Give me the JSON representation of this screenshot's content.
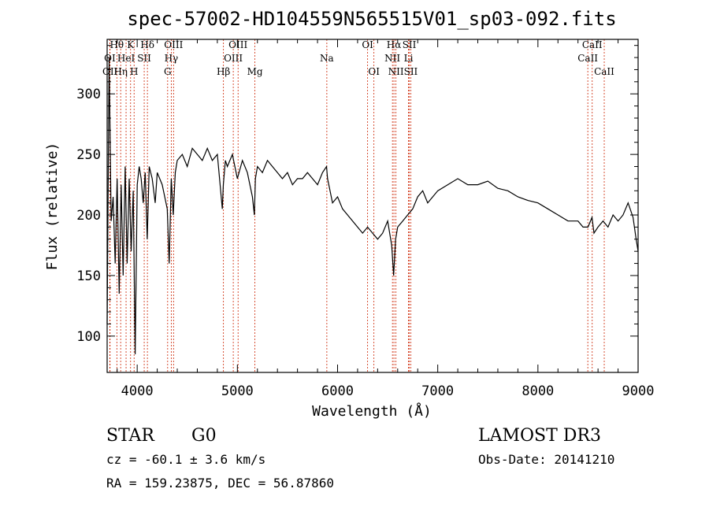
{
  "chart_data": {
    "type": "line",
    "title": "spec-57002-HD104559N565515V01_sp03-092.fits",
    "xlabel": "Wavelength (Å)",
    "ylabel": "Flux (relative)",
    "xlim": [
      3700,
      9000
    ],
    "ylim": [
      70,
      345
    ],
    "x_ticks": [
      "4000",
      "5000",
      "6000",
      "7000",
      "8000",
      "9000"
    ],
    "x_tick_values": [
      4000,
      5000,
      6000,
      7000,
      8000,
      9000
    ],
    "y_ticks": [
      "100",
      "150",
      "200",
      "250",
      "300"
    ],
    "y_tick_values": [
      100,
      150,
      200,
      250,
      300
    ],
    "series": [
      {
        "x": [
          3700,
          3720,
          3740,
          3760,
          3780,
          3800,
          3820,
          3840,
          3860,
          3880,
          3900,
          3920,
          3940,
          3960,
          3980,
          4000,
          4020,
          4040,
          4060,
          4080,
          4100,
          4120,
          4150,
          4180,
          4200,
          4250,
          4300,
          4320,
          4340,
          4360,
          4380,
          4400,
          4450,
          4500,
          4550,
          4600,
          4650,
          4700,
          4750,
          4800,
          4850,
          4860,
          4880,
          4900,
          4950,
          5000,
          5050,
          5100,
          5150,
          5170,
          5180,
          5200,
          5250,
          5300,
          5350,
          5400,
          5450,
          5500,
          5550,
          5600,
          5650,
          5700,
          5750,
          5800,
          5850,
          5890,
          5900,
          5950,
          6000,
          6050,
          6100,
          6150,
          6200,
          6250,
          6300,
          6350,
          6400,
          6450,
          6500,
          6540,
          6560,
          6580,
          6600,
          6650,
          6700,
          6750,
          6800,
          6850,
          6900,
          6950,
          7000,
          7100,
          7200,
          7300,
          7400,
          7500,
          7600,
          7700,
          7800,
          7900,
          8000,
          8100,
          8200,
          8300,
          8400,
          8450,
          8500,
          8540,
          8560,
          8600,
          8650,
          8700,
          8750,
          8800,
          8850,
          8900,
          8950,
          8980,
          9000
        ],
        "y": [
          110,
          330,
          195,
          215,
          160,
          230,
          135,
          225,
          150,
          240,
          160,
          230,
          170,
          220,
          85,
          225,
          240,
          230,
          210,
          235,
          180,
          240,
          230,
          210,
          235,
          225,
          205,
          160,
          230,
          200,
          235,
          245,
          250,
          240,
          255,
          250,
          245,
          255,
          245,
          250,
          205,
          225,
          245,
          240,
          250,
          230,
          245,
          235,
          215,
          200,
          230,
          240,
          235,
          245,
          240,
          235,
          230,
          235,
          225,
          230,
          230,
          235,
          230,
          225,
          235,
          240,
          230,
          210,
          215,
          205,
          200,
          195,
          190,
          185,
          190,
          185,
          180,
          185,
          195,
          175,
          150,
          180,
          190,
          195,
          200,
          205,
          215,
          220,
          210,
          215,
          220,
          225,
          230,
          225,
          225,
          228,
          222,
          220,
          215,
          212,
          210,
          205,
          200,
          195,
          195,
          190,
          190,
          198,
          185,
          190,
          195,
          190,
          200,
          195,
          200,
          210,
          198,
          180,
          170
        ]
      }
    ],
    "lines": [
      {
        "label": "OI",
        "x": 3727,
        "row": 1
      },
      {
        "label": "OII",
        "x": 3729,
        "row": 2
      },
      {
        "label": "Hθ",
        "x": 3797,
        "row": 0
      },
      {
        "label": "Hη",
        "x": 3835,
        "row": 2
      },
      {
        "label": "HeI",
        "x": 3889,
        "row": 1
      },
      {
        "label": "K",
        "x": 3934,
        "row": 0
      },
      {
        "label": "H",
        "x": 3969,
        "row": 2
      },
      {
        "label": "SII",
        "x": 4070,
        "row": 1
      },
      {
        "label": "Hδ",
        "x": 4102,
        "row": 0
      },
      {
        "label": "G",
        "x": 4304,
        "row": 2
      },
      {
        "label": "Hγ",
        "x": 4340,
        "row": 1
      },
      {
        "label": "OIII",
        "x": 4363,
        "row": 0
      },
      {
        "label": "Hβ",
        "x": 4861,
        "row": 2
      },
      {
        "label": "OIII",
        "x": 4959,
        "row": 1
      },
      {
        "label": "OIII",
        "x": 5007,
        "row": 0
      },
      {
        "label": "Mg",
        "x": 5175,
        "row": 2
      },
      {
        "label": "Na",
        "x": 5893,
        "row": 1
      },
      {
        "label": "OI",
        "x": 6300,
        "row": 0
      },
      {
        "label": "OI",
        "x": 6363,
        "row": 2
      },
      {
        "label": "NII",
        "x": 6548,
        "row": 1
      },
      {
        "label": "Hα",
        "x": 6563,
        "row": 0
      },
      {
        "label": "NII",
        "x": 6583,
        "row": 2
      },
      {
        "label": "Li",
        "x": 6708,
        "row": 1
      },
      {
        "label": "SII",
        "x": 6716,
        "row": 0
      },
      {
        "label": "SII",
        "x": 6731,
        "row": 2
      },
      {
        "label": "CaII",
        "x": 8498,
        "row": 1
      },
      {
        "label": "CaII",
        "x": 8542,
        "row": 0
      },
      {
        "label": "CaII",
        "x": 8662,
        "row": 2
      }
    ],
    "line_color": "#cc2200",
    "spectrum_color": "#000000"
  },
  "info": {
    "class": "STAR",
    "subclass": "G0",
    "survey": "LAMOST DR3",
    "cz": "cz = -60.1 ± 3.6 km/s",
    "obs_date": "Obs-Date: 20141210",
    "coords": "RA = 159.23875, DEC =  56.87860"
  }
}
